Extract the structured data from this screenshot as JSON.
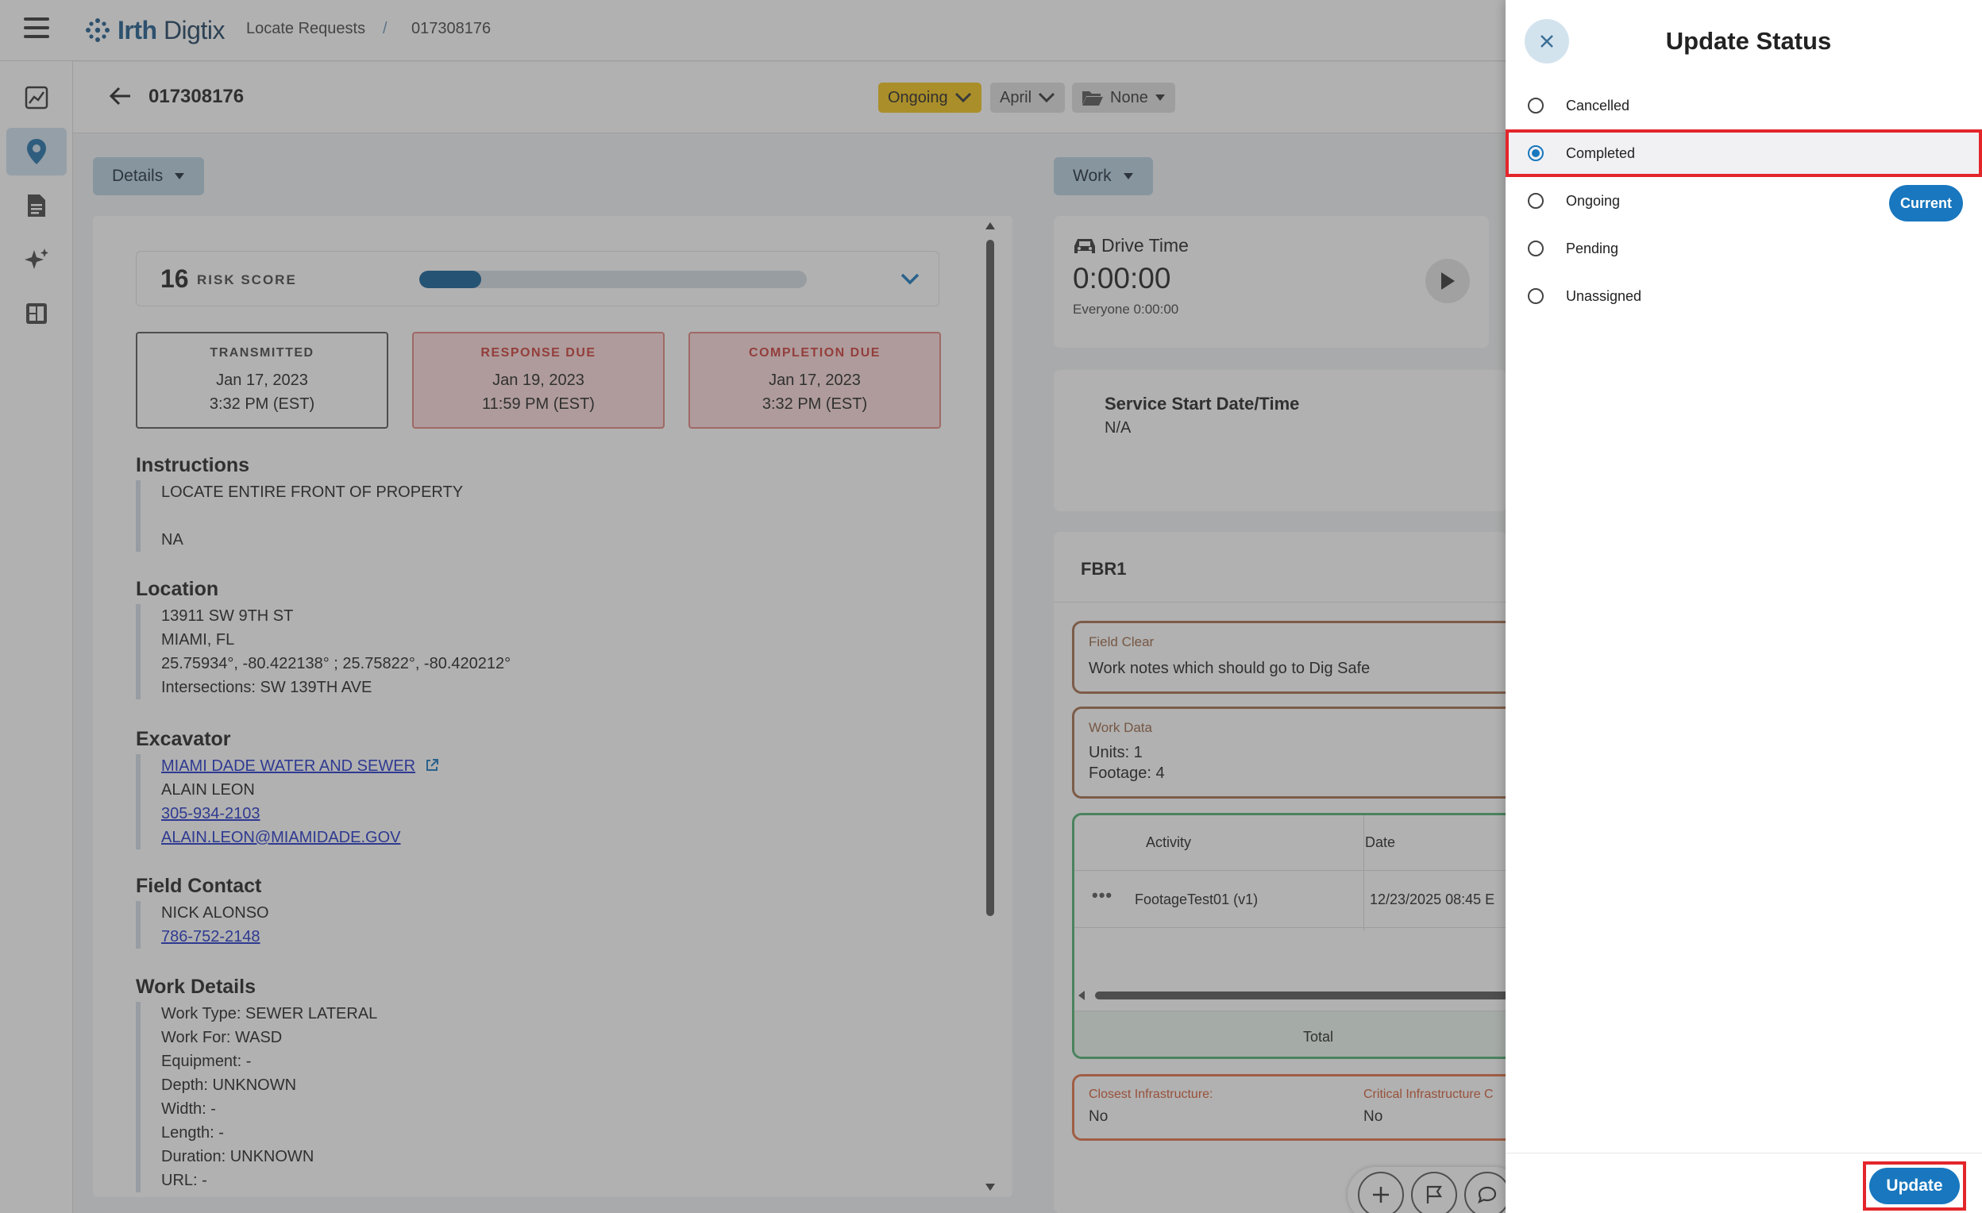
{
  "app": {
    "logo_brand": "Irth",
    "logo_product": "Digtix",
    "logo_icon": "irth-logo-icon"
  },
  "breadcrumb": {
    "section": "Locate Requests",
    "separator": "/",
    "ticket": "017308176"
  },
  "left_nav": [
    {
      "icon": "analytics-icon"
    },
    {
      "icon": "map-pin-icon"
    },
    {
      "icon": "document-icon"
    },
    {
      "icon": "sparkle-icon"
    },
    {
      "icon": "dashboard-icon"
    }
  ],
  "ticket_header": {
    "ticket_number": "017308176",
    "status": "Ongoing",
    "assignee": "April",
    "folder": "None",
    "status_color": "#f3c316"
  },
  "details": {
    "panel_button": "Details",
    "risk": {
      "score": "16",
      "label": "RISK SCORE",
      "fill_fraction": 0.16
    },
    "dates": [
      {
        "label": "TRANSMITTED",
        "date": "Jan 17, 2023",
        "time": "3:32 PM (EST)",
        "style": "neutral"
      },
      {
        "label": "RESPONSE DUE",
        "date": "Jan 19, 2023",
        "time": "11:59 PM (EST)",
        "style": "overdue"
      },
      {
        "label": "COMPLETION DUE",
        "date": "Jan 17, 2023",
        "time": "3:32 PM (EST)",
        "style": "overdue"
      }
    ],
    "instructions": {
      "heading": "Instructions",
      "line1": "LOCATE ENTIRE FRONT OF PROPERTY",
      "line2": "NA"
    },
    "location": {
      "heading": "Location",
      "street": "13911 SW 9TH ST",
      "city": "MIAMI, FL",
      "coords": "25.75934°, -80.422138° ; 25.75822°, -80.420212°",
      "intersections": "Intersections: SW 139TH AVE"
    },
    "excavator": {
      "heading": "Excavator",
      "company": "MIAMI DADE WATER AND SEWER",
      "contact": "ALAIN LEON",
      "phone": "305-934-2103",
      "email": "ALAIN.LEON@MIAMIDADE.GOV"
    },
    "field_contact": {
      "heading": "Field Contact",
      "name": "NICK ALONSO",
      "phone": "786-752-2148"
    },
    "work_details": {
      "heading": "Work Details",
      "lines": [
        "Work Type: SEWER LATERAL",
        "Work For: WASD",
        "Equipment: -",
        "Depth: UNKNOWN",
        "Width: -",
        "Length: -",
        "Duration: UNKNOWN",
        "URL: -"
      ]
    }
  },
  "work": {
    "panel_button": "Work",
    "drive_time": {
      "title": "Drive Time",
      "value": "0:00:00",
      "sub": "Everyone 0:00:00"
    },
    "service_start": {
      "title": "Service Start Date/Time",
      "value": "N/A"
    },
    "fbr": {
      "title": "FBR1",
      "field_clear": {
        "label": "Field Clear",
        "value": "Work notes which should go to Dig Safe"
      },
      "work_data": {
        "label": "Work Data",
        "units": "Units: 1",
        "footage": "Footage: 4"
      },
      "activity_table": {
        "headers": [
          "Activity",
          "Date"
        ],
        "rows": [
          {
            "activity": "FootageTest01 (v1)",
            "date": "12/23/2025 08:45 E"
          }
        ],
        "total_label": "Total"
      },
      "infrastructure": {
        "closest_label": "Closest Infrastructure:",
        "closest_value": "No",
        "critical_label": "Critical Infrastructure C",
        "critical_value": "No"
      }
    }
  },
  "update_status": {
    "title": "Update Status",
    "options": [
      {
        "label": "Cancelled",
        "selected": false,
        "current": false
      },
      {
        "label": "Completed",
        "selected": true,
        "current": false
      },
      {
        "label": "Ongoing",
        "selected": false,
        "current": true
      },
      {
        "label": "Pending",
        "selected": false,
        "current": false
      },
      {
        "label": "Unassigned",
        "selected": false,
        "current": false
      }
    ],
    "current_badge": "Current",
    "update_button": "Update"
  },
  "colors": {
    "accent": "#1877be",
    "highlight": "#e3262b",
    "overdue_bg": "#fbdada",
    "field_clear_border": "#a56d4d",
    "activity_border": "#4fb071",
    "infra_border": "#e27046"
  }
}
